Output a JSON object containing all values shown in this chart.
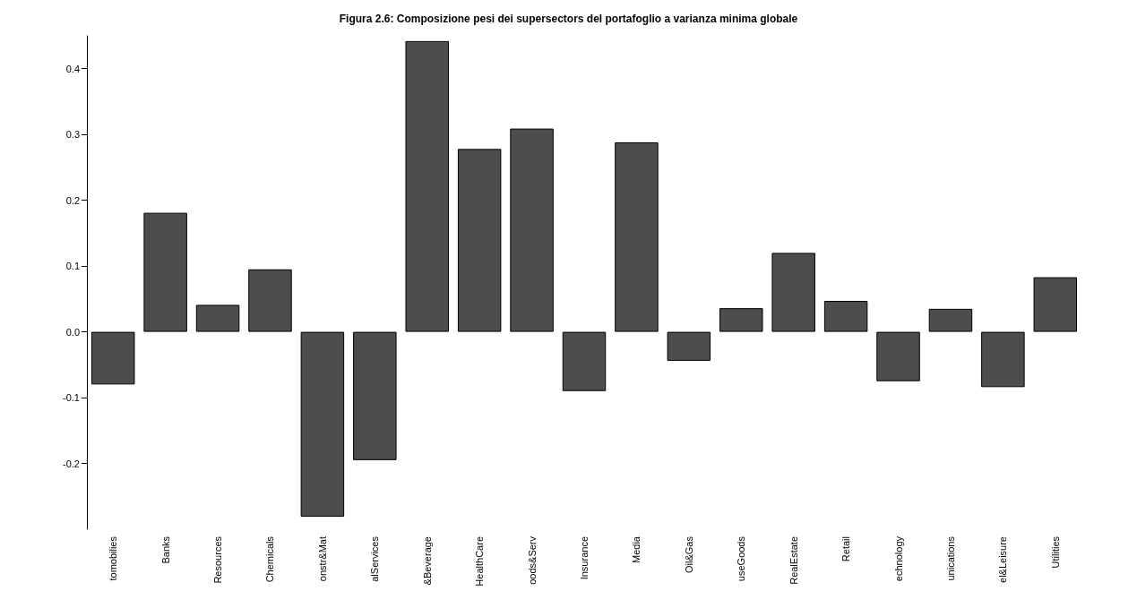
{
  "chart_data": {
    "type": "bar",
    "title": "Figura 2.6: Composizione pesi dei supersectors del portafoglio a varianza minima globale",
    "categories": [
      "tomobilies",
      "Banks",
      "Resources",
      "Chemicals",
      "onstr&Mat",
      "alServices",
      "&Beverage",
      "HealthCare",
      "oods&Serv",
      "Insurance",
      "Media",
      "Oil&Gas",
      "useGoods",
      "RealEstate",
      "Retail",
      "echnology",
      "unications",
      "el&Leisure",
      "Utilities"
    ],
    "values": [
      -0.08,
      0.181,
      0.041,
      0.095,
      -0.281,
      -0.195,
      0.442,
      0.278,
      0.309,
      -0.09,
      0.288,
      -0.044,
      0.036,
      0.12,
      0.047,
      -0.075,
      0.035,
      -0.084,
      0.083
    ],
    "color": "#4d4d4d",
    "ylim": [
      -0.3,
      0.45
    ],
    "yticks": [
      -0.2,
      -0.1,
      {
        "value": 0,
        "label": "0.0"
      },
      0.1,
      0.2,
      0.3,
      0.4
    ],
    "grid": false
  }
}
